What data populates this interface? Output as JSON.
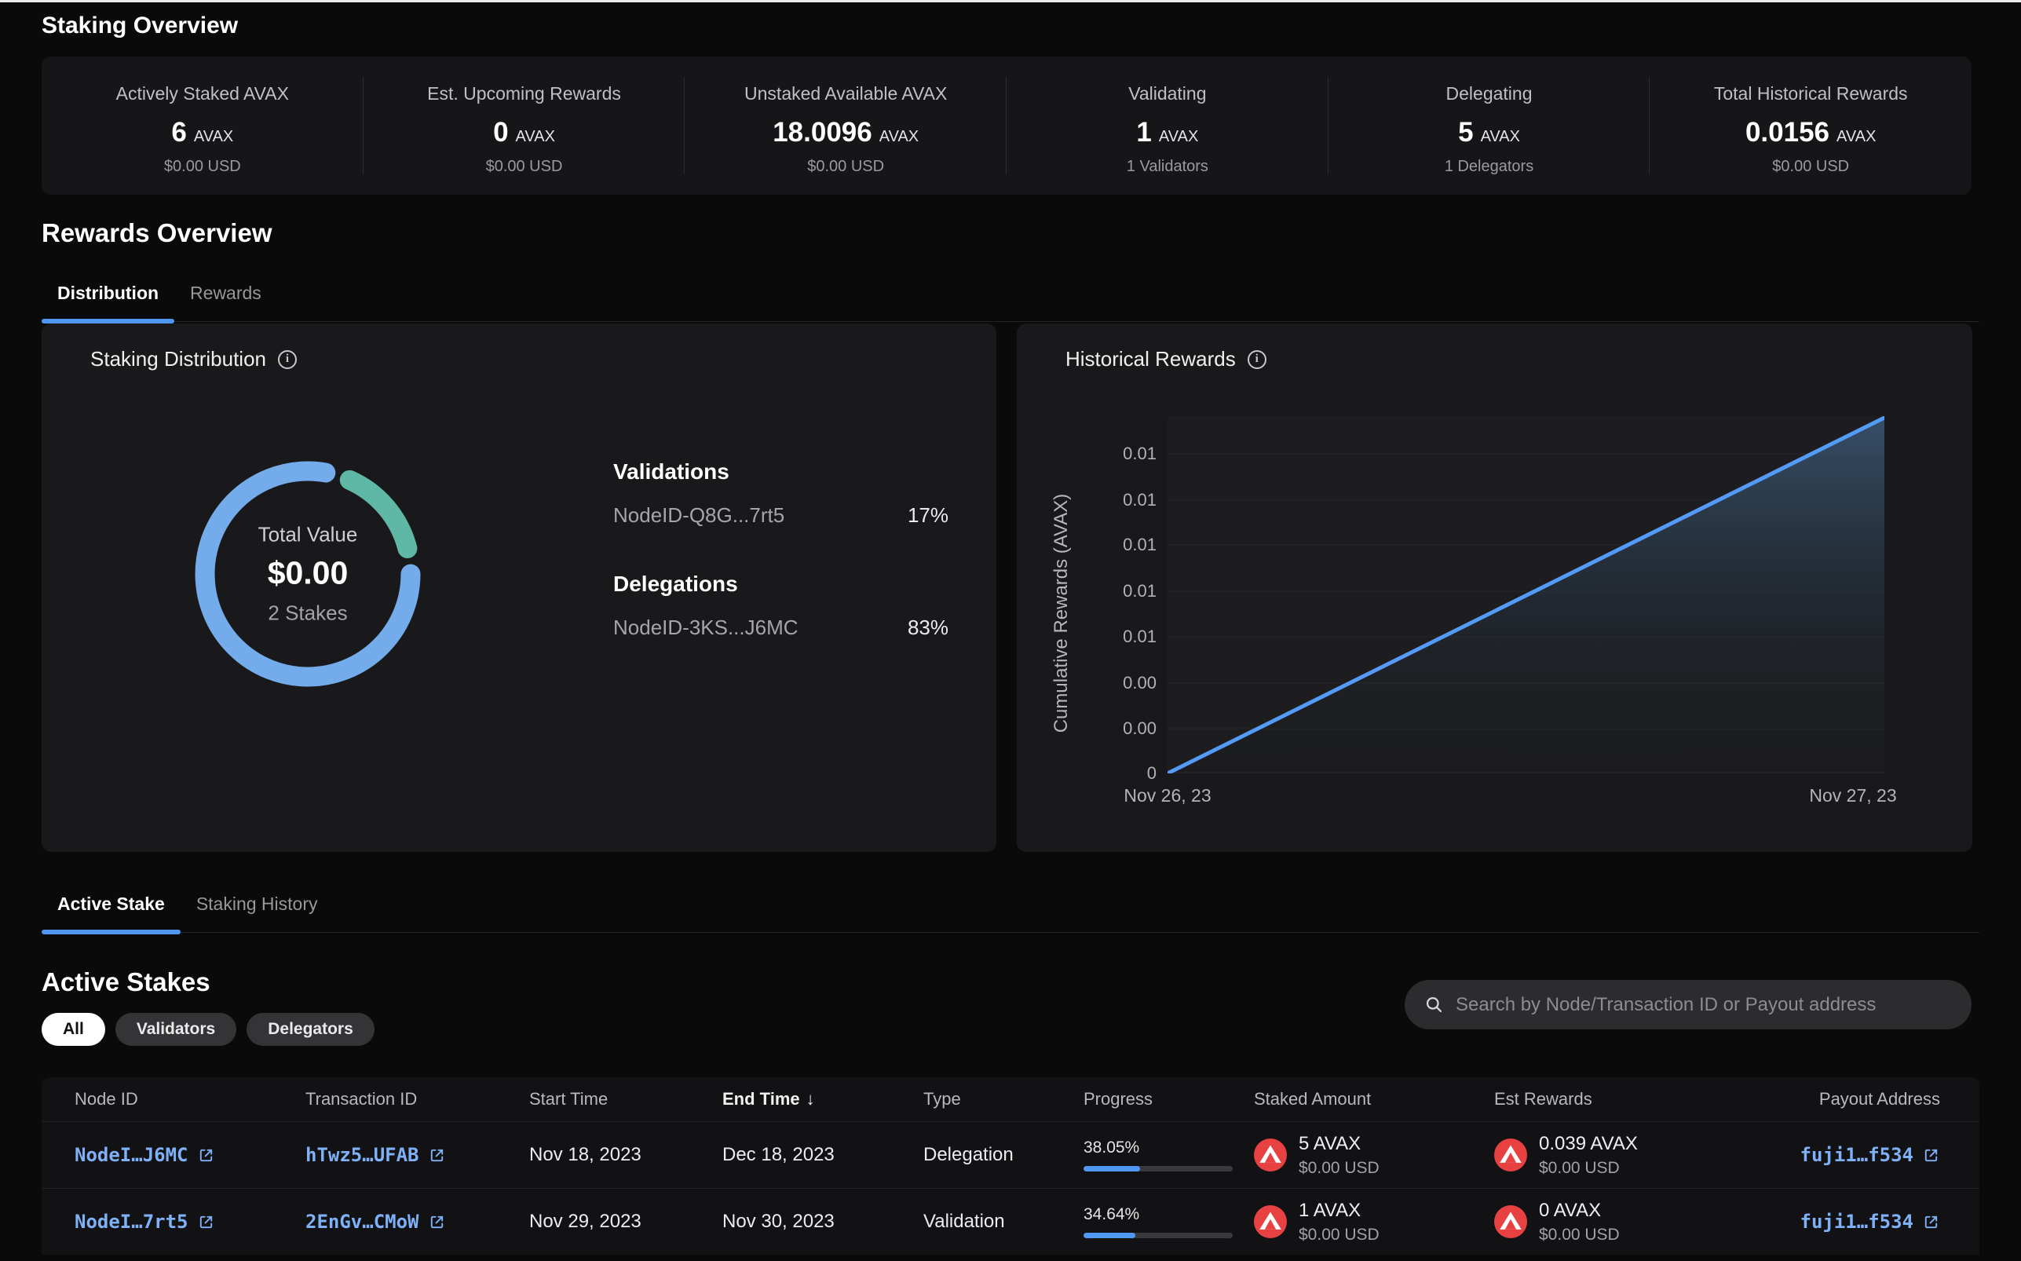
{
  "staking_overview": {
    "title": "Staking Overview",
    "stats": [
      {
        "label": "Actively Staked AVAX",
        "value": "6",
        "unit": "AVAX",
        "sub": "$0.00 USD"
      },
      {
        "label": "Est. Upcoming Rewards",
        "value": "0",
        "unit": "AVAX",
        "sub": "$0.00 USD"
      },
      {
        "label": "Unstaked Available AVAX",
        "value": "18.0096",
        "unit": "AVAX",
        "sub": "$0.00 USD"
      },
      {
        "label": "Validating",
        "value": "1",
        "unit": "AVAX",
        "sub": "1 Validators"
      },
      {
        "label": "Delegating",
        "value": "5",
        "unit": "AVAX",
        "sub": "1 Delegators"
      },
      {
        "label": "Total Historical Rewards",
        "value": "0.0156",
        "unit": "AVAX",
        "sub": "$0.00 USD"
      }
    ]
  },
  "rewards_overview": {
    "title": "Rewards Overview",
    "tabs": [
      {
        "label": "Distribution",
        "active": true
      },
      {
        "label": "Rewards",
        "active": false
      }
    ]
  },
  "staking_distribution": {
    "title": "Staking Distribution",
    "groups": [
      {
        "heading": "Validations",
        "node": "NodeID-Q8G...7rt5",
        "percent": "17%"
      },
      {
        "heading": "Delegations",
        "node": "NodeID-3KS...J6MC",
        "percent": "83%"
      }
    ]
  },
  "historical_rewards": {
    "title": "Historical Rewards"
  },
  "chart_data": [
    {
      "type": "pie",
      "title": "Staking Distribution",
      "center_label": "Total Value",
      "center_value": "$0.00",
      "center_sub": "2 Stakes",
      "slices": [
        {
          "label": "Validations — NodeID-Q8G...7rt5",
          "value": 17,
          "color": "#5fb8a5"
        },
        {
          "label": "Delegations — NodeID-3KS...J6MC",
          "value": 83,
          "color": "#74aceb"
        }
      ]
    },
    {
      "type": "area",
      "title": "Historical Rewards",
      "ylabel": "Cumulative Rewards (AVAX)",
      "x_ticks": [
        "Nov 26, 23",
        "Nov 27, 23"
      ],
      "y_ticks": [
        "0.01",
        "0.01",
        "0.01",
        "0.01",
        "0.01",
        "0.00",
        "0.00",
        "0"
      ],
      "series": [
        {
          "name": "Cumulative Rewards (AVAX)",
          "x": [
            "Nov 26, 23",
            "Nov 27, 23"
          ],
          "values": [
            0,
            0.0156
          ]
        }
      ],
      "ylim": [
        0,
        0.0156
      ],
      "grid": true,
      "line_color": "#549bf7"
    }
  ],
  "stake_section": {
    "tabs": [
      {
        "label": "Active Stake",
        "active": true
      },
      {
        "label": "Staking History",
        "active": false
      }
    ]
  },
  "active_stakes": {
    "title": "Active Stakes",
    "filters": [
      {
        "label": "All",
        "active": true
      },
      {
        "label": "Validators",
        "active": false
      },
      {
        "label": "Delegators",
        "active": false
      }
    ],
    "search_placeholder": "Search by Node/Transaction ID or Payout address",
    "table": {
      "columns": [
        "Node ID",
        "Transaction ID",
        "Start Time",
        "End Time",
        "Type",
        "Progress",
        "Staked Amount",
        "Est Rewards",
        "Payout Address"
      ],
      "sort_column": "End Time",
      "sort_indicator": "↓",
      "rows": [
        {
          "node_id": "NodeI…J6MC",
          "transaction_id": "hTwz5…UFAB",
          "start_time": "Nov 18, 2023",
          "end_time": "Dec 18, 2023",
          "type": "Delegation",
          "progress_label": "38.05%",
          "progress_value": 38.05,
          "staked_amount": "5 AVAX",
          "staked_usd": "$0.00 USD",
          "est_rewards": "0.039 AVAX",
          "est_rewards_usd": "$0.00 USD",
          "payout_address": "fuji1…f534"
        },
        {
          "node_id": "NodeI…7rt5",
          "transaction_id": "2EnGv…CMoW",
          "start_time": "Nov 29, 2023",
          "end_time": "Nov 30, 2023",
          "type": "Validation",
          "progress_label": "34.64%",
          "progress_value": 34.64,
          "staked_amount": "1 AVAX",
          "staked_usd": "$0.00 USD",
          "est_rewards": "0 AVAX",
          "est_rewards_usd": "$0.00 USD",
          "payout_address": "fuji1…f534"
        }
      ]
    }
  }
}
